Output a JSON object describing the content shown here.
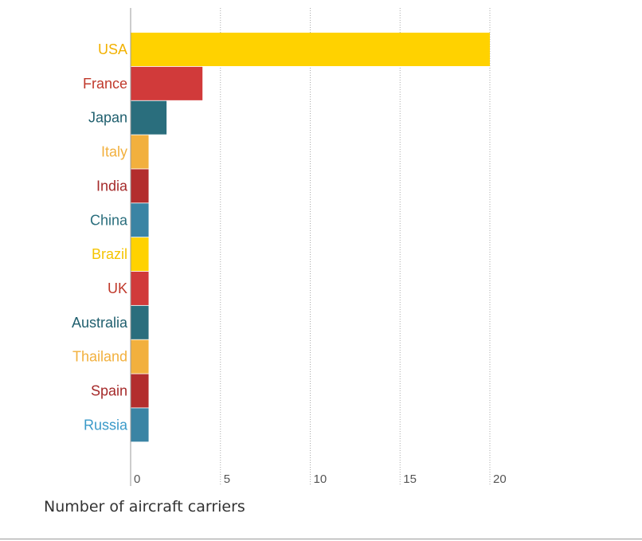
{
  "colors": {
    "yellow": "#ffd200",
    "red": "#d13a3a",
    "teal": "#2a6e7d",
    "orange": "#f2b03d",
    "darkred": "#b32d2d",
    "blue": "#3a84a4",
    "grid": "#aaaaaa",
    "axis": "#999999"
  },
  "chart_data": {
    "type": "bar",
    "orientation": "horizontal",
    "categories": [
      "USA",
      "France",
      "Japan",
      "Italy",
      "India",
      "China",
      "Brazil",
      "UK",
      "Australia",
      "Thailand",
      "Spain",
      "Russia"
    ],
    "values": [
      20,
      4,
      2,
      1,
      1,
      1,
      1,
      1,
      1,
      1,
      1,
      1
    ],
    "bar_colors": [
      "#ffd200",
      "#d13a3a",
      "#2a6e7d",
      "#f2b03d",
      "#b32d2d",
      "#3a84a4",
      "#ffd200",
      "#d13a3a",
      "#2a6e7d",
      "#f2b03d",
      "#b32d2d",
      "#3a84a4"
    ],
    "label_colors": [
      "#f2b100",
      "#c0392b",
      "#1f5f6e",
      "#f2b03d",
      "#a52a2a",
      "#2a6e7d",
      "#f5c400",
      "#c0392b",
      "#1f5f6e",
      "#f2b03d",
      "#a52a2a",
      "#3a9ac9"
    ],
    "xticks": [
      0,
      5,
      10,
      15,
      20
    ],
    "xtick_labels": [
      "0",
      "5",
      "10",
      "15",
      "20"
    ],
    "xlim": [
      0,
      20
    ],
    "xlabel": "Number of aircraft carriers",
    "ylabel": "",
    "title": "",
    "grid": "vertical dotted"
  }
}
